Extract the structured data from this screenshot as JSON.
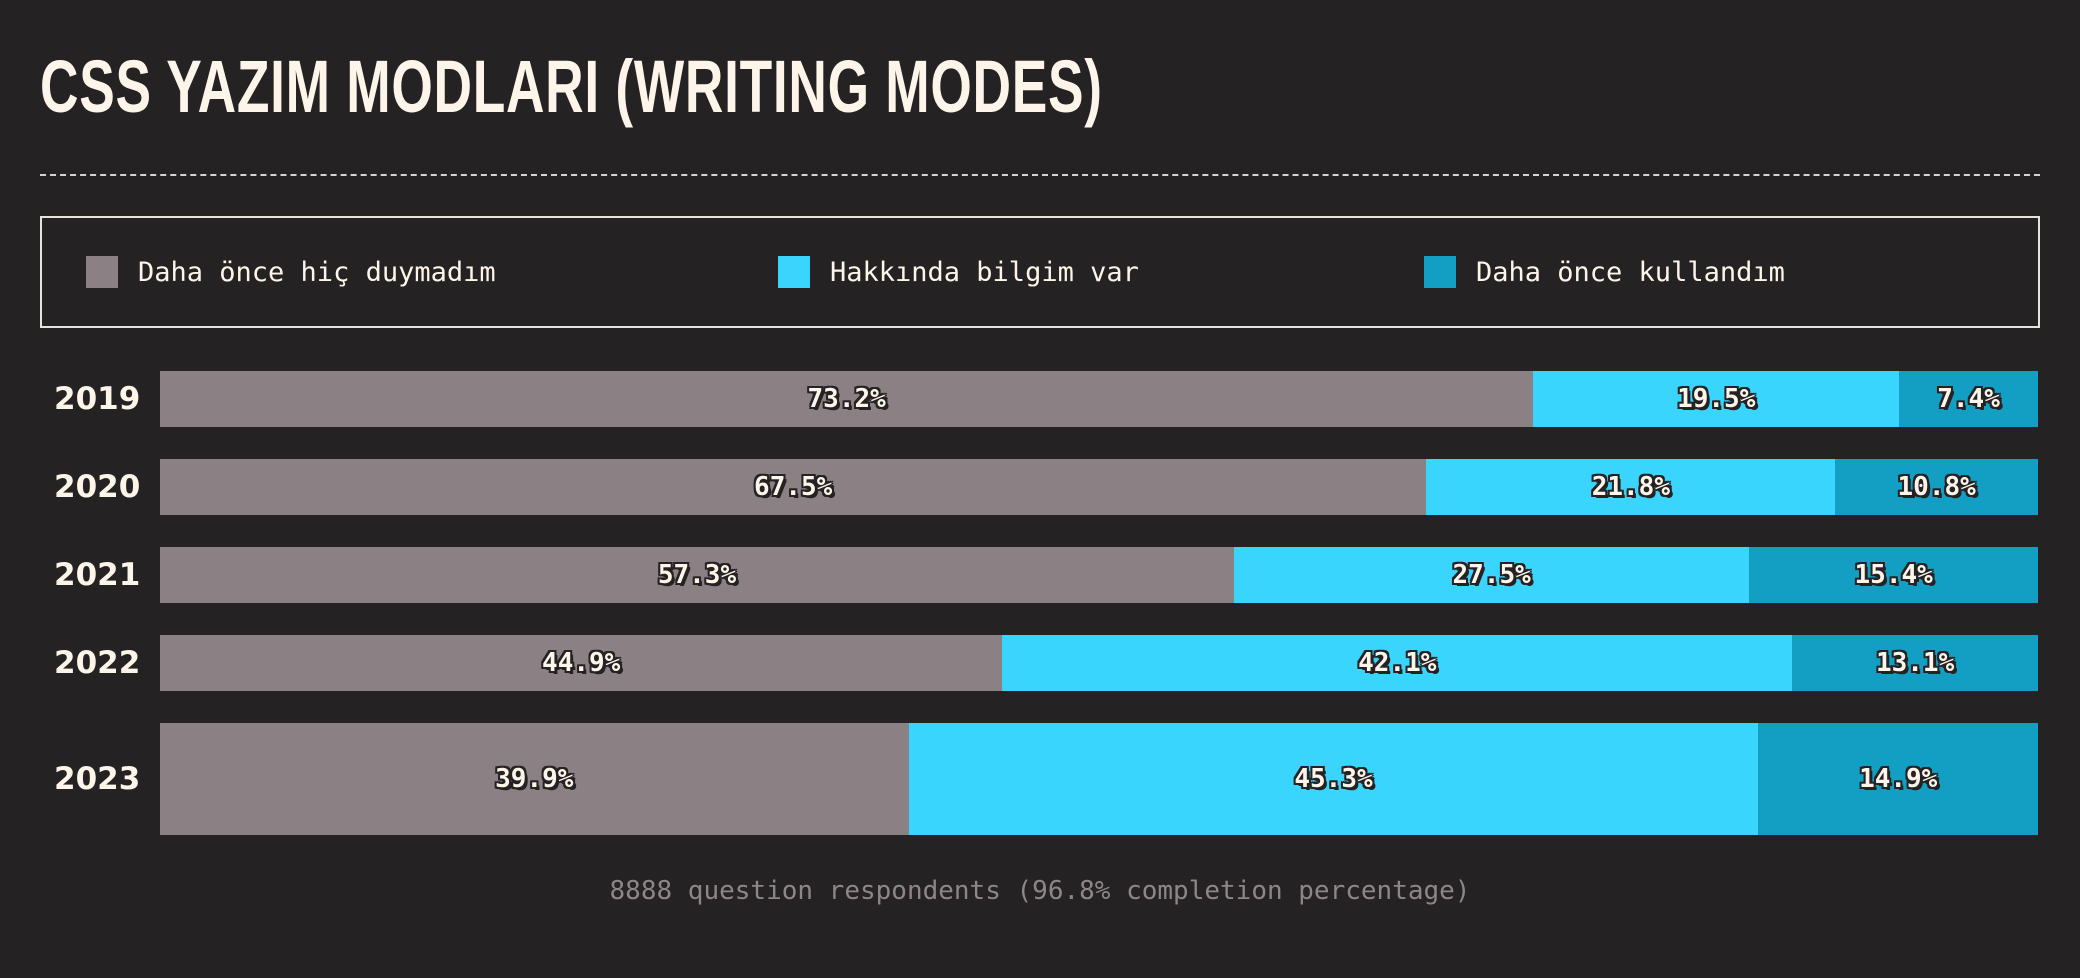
{
  "title": "CSS Yazım Modları (Writing Modes)",
  "colors": {
    "background": "#252223",
    "never_heard": "#8b8185",
    "know_about": "#3ad5fc",
    "used": "#139ec4",
    "text": "#fdf5ea"
  },
  "footnote": "8888 question respondents (96.8% completion percentage)",
  "chart_data": {
    "type": "bar",
    "orientation": "horizontal",
    "stacked": true,
    "normalized": true,
    "categories": [
      "2019",
      "2020",
      "2021",
      "2022",
      "2023"
    ],
    "series": [
      {
        "name": "Daha önce hiç duymadım",
        "color": "#8b8185",
        "values": [
          73.2,
          67.5,
          57.3,
          44.9,
          39.9
        ],
        "labels": [
          "73.2%",
          "67.5%",
          "57.3%",
          "44.9%",
          "39.9%"
        ]
      },
      {
        "name": "Hakkında bilgim var",
        "color": "#3ad5fc",
        "values": [
          19.5,
          21.8,
          27.5,
          42.1,
          45.3
        ],
        "labels": [
          "19.5%",
          "21.8%",
          "27.5%",
          "42.1%",
          "45.3%"
        ]
      },
      {
        "name": "Daha önce kullandım",
        "color": "#139ec4",
        "values": [
          7.4,
          10.8,
          15.4,
          13.1,
          14.9
        ],
        "labels": [
          "7.4%",
          "10.8%",
          "15.4%",
          "13.1%",
          "14.9%"
        ]
      }
    ],
    "highlighted_category": "2023",
    "legend_position": "top",
    "unit": "%"
  }
}
